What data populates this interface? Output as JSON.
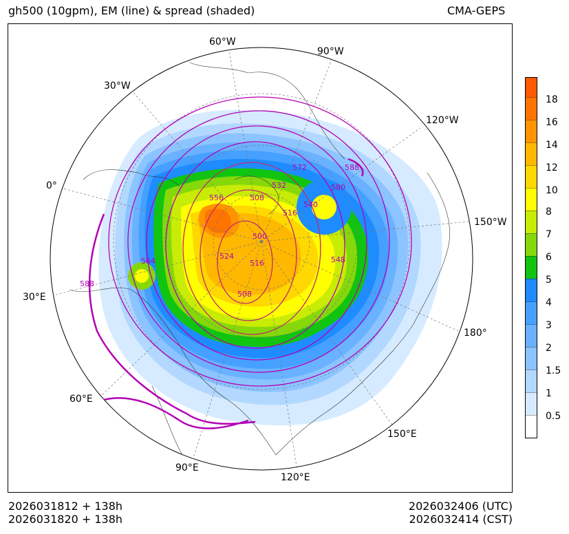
{
  "header": {
    "title": "gh500 (10gpm), EM (line) & spread (shaded)",
    "model": "CMA-GEPS"
  },
  "footer": {
    "init_utc": "2026031812 + 138h",
    "init_cst": "2026031820 + 138h",
    "valid_utc": "2026032406 (UTC)",
    "valid_cst": "2026032414 (CST)"
  },
  "longitude_labels": [
    {
      "text": "60°W"
    },
    {
      "text": "90°W"
    },
    {
      "text": "30°W"
    },
    {
      "text": "120°W"
    },
    {
      "text": "0°"
    },
    {
      "text": "150°W"
    },
    {
      "text": "30°E"
    },
    {
      "text": "180°"
    },
    {
      "text": "60°E"
    },
    {
      "text": "150°E"
    },
    {
      "text": "90°E"
    },
    {
      "text": "120°E"
    }
  ],
  "contour_labels": [
    {
      "text": "572"
    },
    {
      "text": "588"
    },
    {
      "text": "556"
    },
    {
      "text": "532"
    },
    {
      "text": "580"
    },
    {
      "text": "508"
    },
    {
      "text": "540"
    },
    {
      "text": "516"
    },
    {
      "text": "500"
    },
    {
      "text": "564"
    },
    {
      "text": "524"
    },
    {
      "text": "516"
    },
    {
      "text": "548"
    },
    {
      "text": "508"
    },
    {
      "text": "588"
    }
  ],
  "colorbar": {
    "levels": [
      {
        "label": "0.5",
        "color": "#ffffff"
      },
      {
        "label": "1",
        "color": "#d6ebff"
      },
      {
        "label": "1.5",
        "color": "#b3d8ff"
      },
      {
        "label": "2",
        "color": "#8cc4ff"
      },
      {
        "label": "3",
        "color": "#6ab2ff"
      },
      {
        "label": "4",
        "color": "#46a0ff"
      },
      {
        "label": "5",
        "color": "#1e8cff"
      },
      {
        "label": "6",
        "color": "#10c410"
      },
      {
        "label": "7",
        "color": "#86d80a"
      },
      {
        "label": "8",
        "color": "#c8ec05"
      },
      {
        "label": "10",
        "color": "#ffff00"
      },
      {
        "label": "12",
        "color": "#ffd800"
      },
      {
        "label": "14",
        "color": "#ffb800"
      },
      {
        "label": "16",
        "color": "#ff9400"
      },
      {
        "label": "18",
        "color": "#ff7400"
      },
      {
        "label": "",
        "color": "#ff5a00"
      }
    ]
  },
  "colors": {
    "contour": "#b400b4",
    "contour_inner": "#c02a6a",
    "graticule": "#777777",
    "coast": "#333333"
  }
}
